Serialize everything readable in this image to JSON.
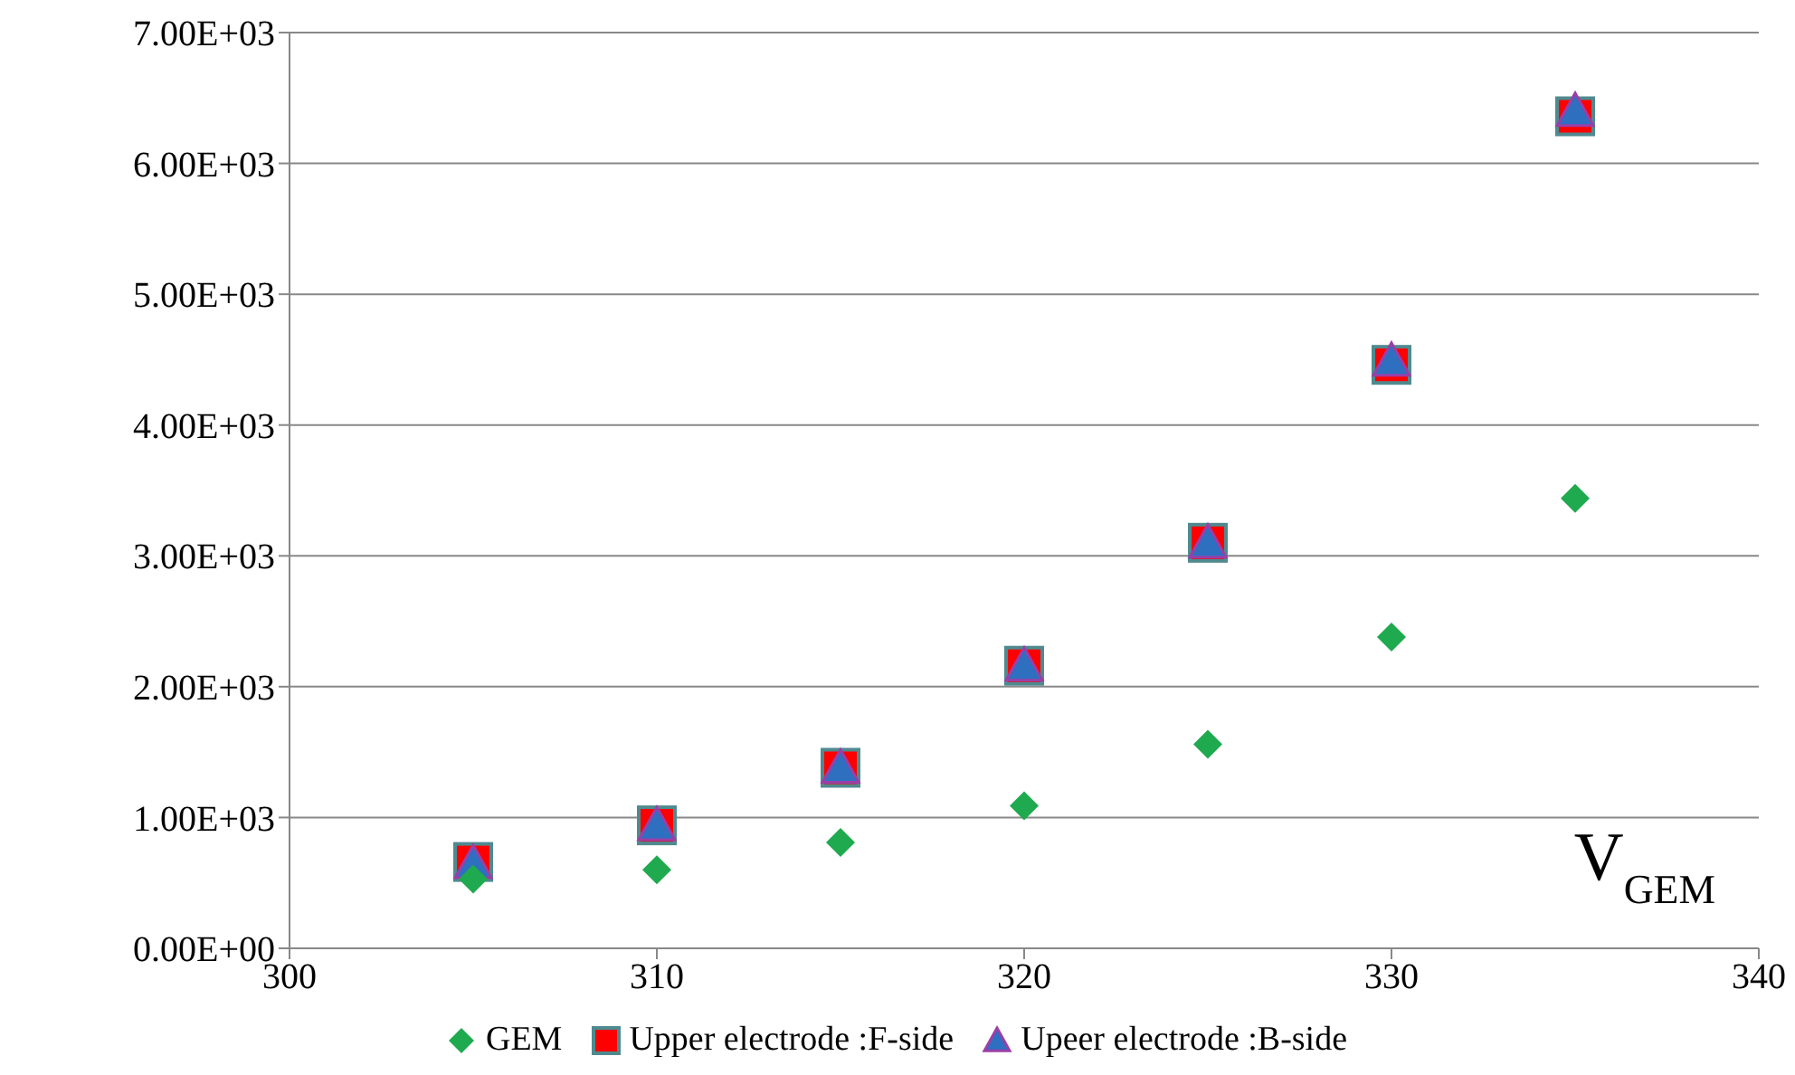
{
  "chart_data": {
    "type": "scatter",
    "xlabel": "V$_{GEM}$",
    "series": [
      {
        "name": "GEM",
        "color": "#1faa4f",
        "marker": "diamond",
        "x": [
          305,
          310,
          315,
          320,
          325,
          330,
          335
        ],
        "values": [
          530,
          600,
          810,
          1090,
          1560,
          2380,
          3440
        ]
      },
      {
        "name": "Upper electrode :F-side",
        "color": "#ff0000",
        "marker": "square",
        "x": [
          305,
          310,
          315,
          320,
          325,
          330,
          335
        ],
        "values": [
          660,
          940,
          1380,
          2160,
          3100,
          4460,
          6360
        ]
      },
      {
        "name": "Upeer electrode :B-side",
        "color": "#2e6fc0",
        "marker": "triangle",
        "x": [
          305,
          310,
          315,
          320,
          325,
          330,
          335
        ],
        "values": [
          650,
          940,
          1380,
          2160,
          3100,
          4490,
          6400
        ]
      }
    ],
    "xlim": [
      300,
      340
    ],
    "xticks": [
      300,
      310,
      320,
      330,
      340
    ],
    "ylim": [
      0,
      7000
    ],
    "yticks": [
      {
        "value": 0,
        "label": "0.00E+00"
      },
      {
        "value": 1000,
        "label": "1.00E+03"
      },
      {
        "value": 2000,
        "label": "2.00E+03"
      },
      {
        "value": 3000,
        "label": "3.00E+03"
      },
      {
        "value": 4000,
        "label": "4.00E+03"
      },
      {
        "value": 5000,
        "label": "5.00E+03"
      },
      {
        "value": 6000,
        "label": "6.00E+03"
      },
      {
        "value": 7000,
        "label": "7.00E+03"
      }
    ],
    "grid": "y",
    "legend": "bottom"
  }
}
